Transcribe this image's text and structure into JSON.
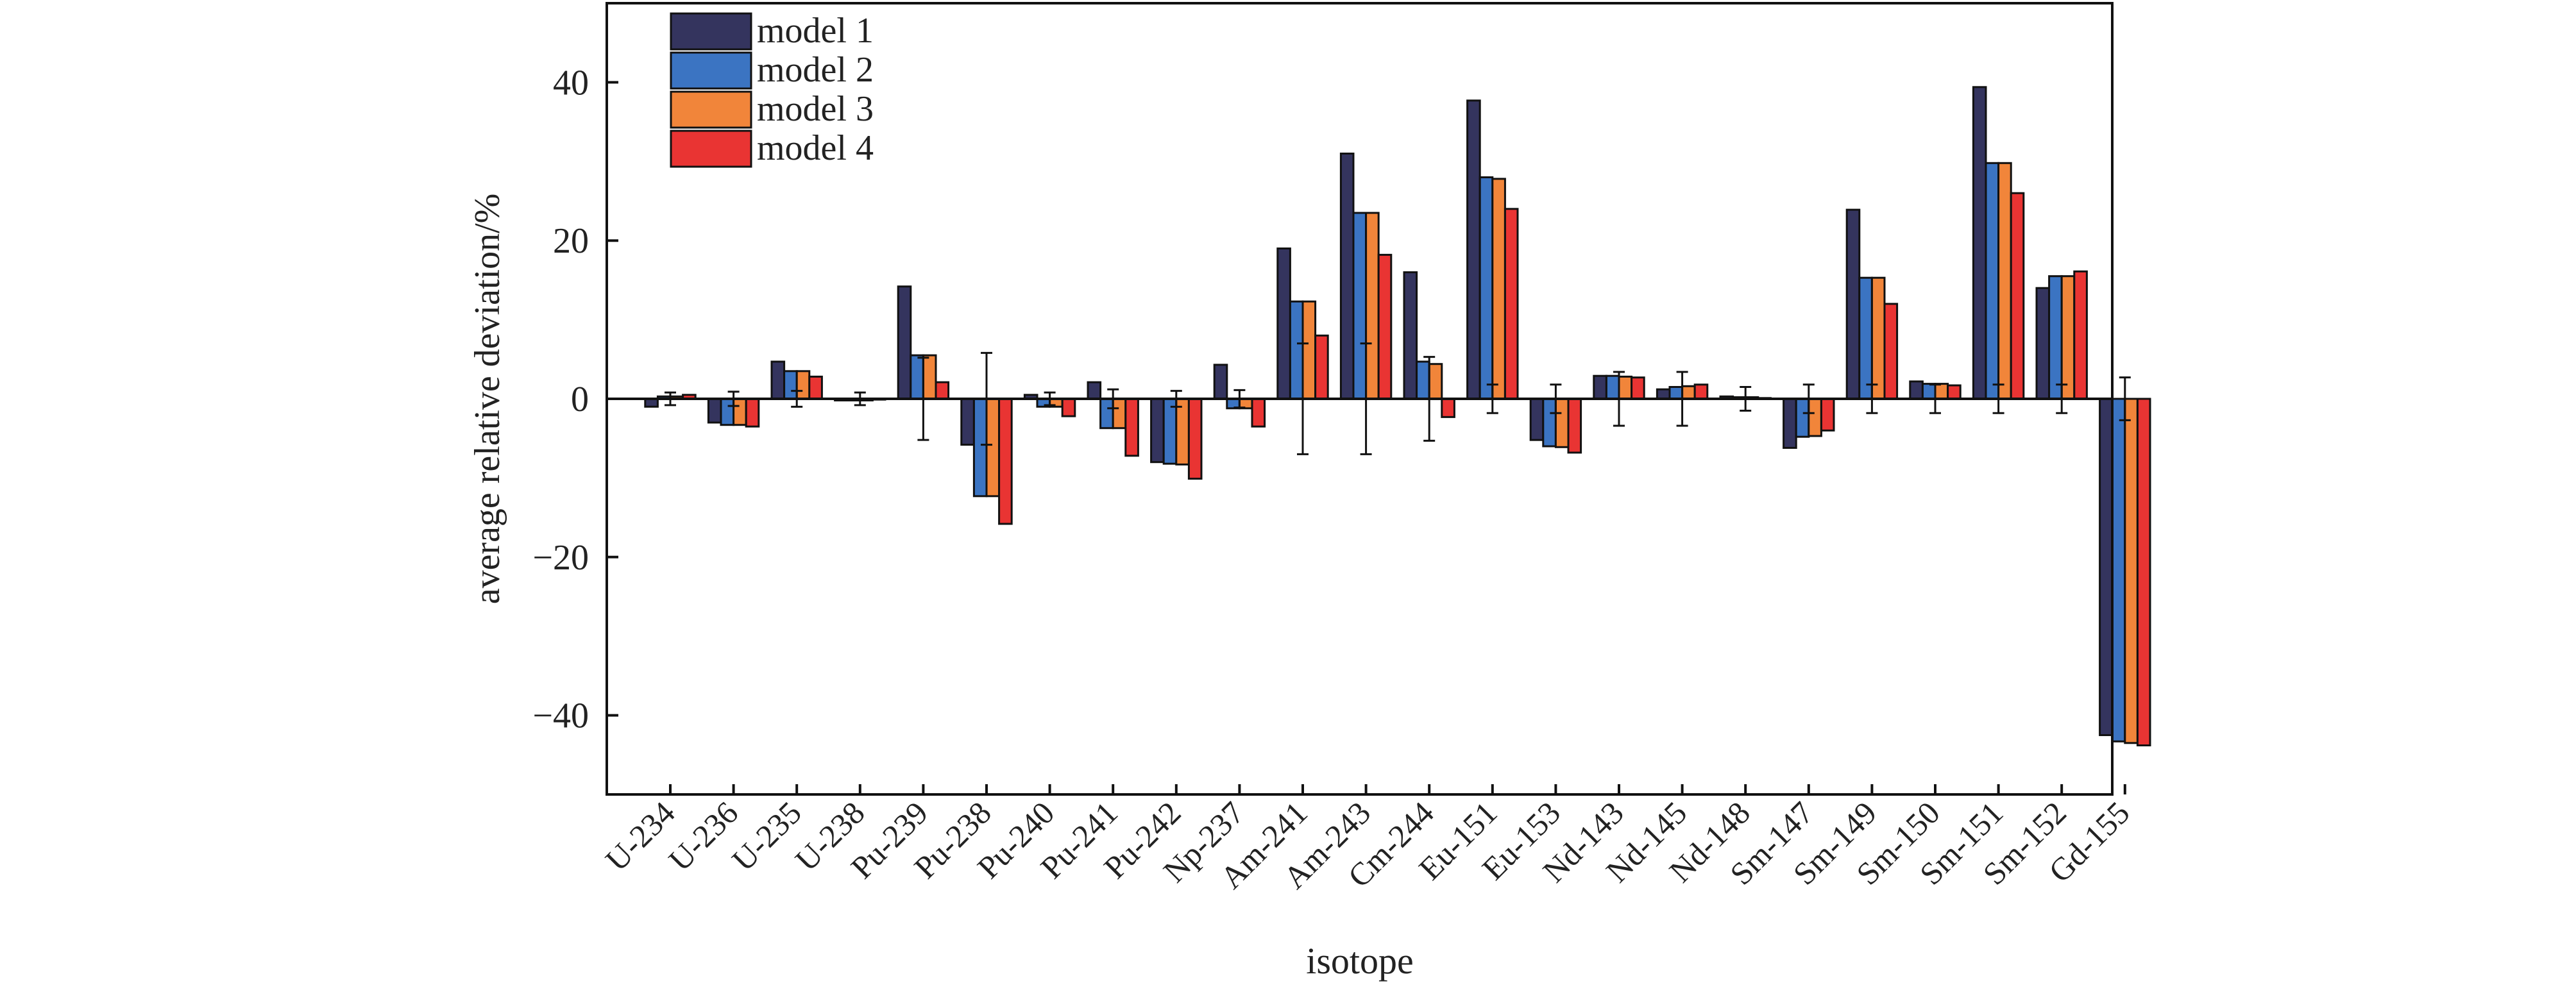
{
  "chart_data": {
    "type": "bar",
    "xlabel": "isotope",
    "ylabel": "average relative deviation/%",
    "ylim": [
      -50,
      50
    ],
    "yticks": [
      40,
      20,
      0,
      -20,
      -40
    ],
    "ytick_labels": [
      "40",
      "20",
      "0",
      "−20",
      "−40"
    ],
    "grid": false,
    "legend_position": "top-left",
    "categories": [
      "U-234",
      "U-236",
      "U-235",
      "U-238",
      "Pu-239",
      "Pu-238",
      "Pu-240",
      "Pu-241",
      "Pu-242",
      "Np-237",
      "Am-241",
      "Am-243",
      "Cm-244",
      "Eu-151",
      "Eu-153",
      "Nd-143",
      "Nd-145",
      "Nd-148",
      "Sm-147",
      "Sm-149",
      "Sm-150",
      "Sm-151",
      "Sm-152",
      "Gd-155"
    ],
    "series": [
      {
        "name": "model 1",
        "color": "#34345e",
        "values": [
          -1.0,
          -3.0,
          4.7,
          -0.2,
          14.2,
          -5.8,
          0.5,
          2.1,
          -8.0,
          4.3,
          19.0,
          31.0,
          16.0,
          37.7,
          -5.2,
          2.9,
          1.2,
          0.3,
          -6.2,
          23.9,
          2.2,
          39.4,
          14.0,
          -42.5
        ]
      },
      {
        "name": "model 2",
        "color": "#3b74c2",
        "values": [
          0.3,
          -3.3,
          3.5,
          -0.2,
          5.5,
          -12.3,
          -1.0,
          -3.7,
          -8.2,
          -1.2,
          12.3,
          23.5,
          4.7,
          28.0,
          -6.0,
          2.9,
          1.5,
          0.2,
          -4.8,
          15.3,
          1.9,
          29.8,
          15.5,
          -43.3
        ]
      },
      {
        "name": "model 3",
        "color": "#f1853a",
        "values": [
          0.3,
          -3.3,
          3.5,
          -0.2,
          5.5,
          -12.3,
          -1.0,
          -3.7,
          -8.3,
          -1.2,
          12.3,
          23.5,
          4.4,
          27.8,
          -6.1,
          2.8,
          1.6,
          0.2,
          -4.7,
          15.3,
          1.9,
          29.8,
          15.5,
          -43.5
        ]
      },
      {
        "name": "model 4",
        "color": "#e93433",
        "values": [
          0.5,
          -3.5,
          2.8,
          -0.1,
          2.1,
          -15.8,
          -2.2,
          -7.2,
          -10.1,
          -3.5,
          8.0,
          18.2,
          -2.3,
          24.0,
          -6.8,
          2.7,
          1.8,
          0.1,
          -4.0,
          12.0,
          1.7,
          26.0,
          16.1,
          -43.8
        ]
      }
    ],
    "error_bars": [
      0.8,
      0.9,
      1.0,
      0.8,
      5.2,
      5.8,
      0.8,
      1.2,
      1.0,
      1.1,
      7.0,
      7.0,
      5.3,
      1.8,
      1.8,
      3.4,
      3.4,
      1.5,
      1.8,
      1.8,
      1.8,
      1.8,
      1.8,
      2.7
    ]
  }
}
